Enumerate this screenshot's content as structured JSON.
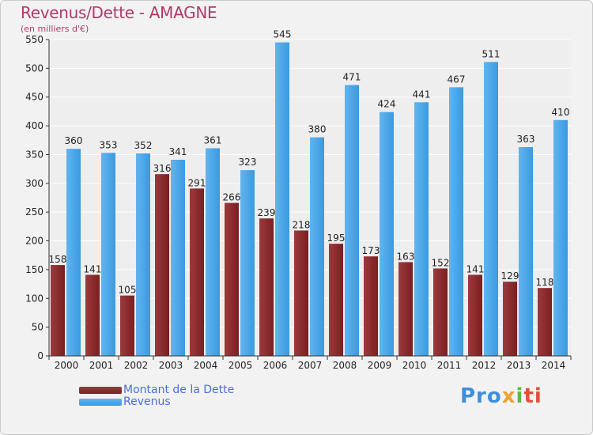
{
  "colors": {
    "debt": "#7a1f22",
    "debt_light": "#9c3a3c",
    "revenue": "#3a9ae0",
    "revenue_light": "#62b4ef",
    "grid": "#ffffff",
    "axis": "#333333",
    "title": "#b03a6a",
    "legend_text": "#4a6fe0"
  },
  "chart_data": {
    "type": "bar",
    "title": "Revenus/Dette - AMAGNE",
    "subtitle": "(en milliers d'€)",
    "categories": [
      "2000",
      "2001",
      "2002",
      "2003",
      "2004",
      "2005",
      "2006",
      "2007",
      "2008",
      "2009",
      "2010",
      "2011",
      "2012",
      "2013",
      "2014"
    ],
    "series": [
      {
        "name": "Montant de la Dette",
        "values": [
          158,
          141,
          105,
          316,
          291,
          266,
          239,
          218,
          195,
          173,
          163,
          152,
          141,
          129,
          118
        ]
      },
      {
        "name": "Revenus",
        "values": [
          360,
          353,
          352,
          341,
          361,
          323,
          545,
          380,
          471,
          424,
          441,
          467,
          511,
          363,
          410
        ]
      }
    ],
    "ylim": [
      0,
      550
    ],
    "yticks": [
      0,
      50,
      100,
      150,
      200,
      250,
      300,
      350,
      400,
      450,
      500,
      550
    ],
    "grid": true,
    "legend": "bottom-left"
  },
  "logo": {
    "part1": "Pro",
    "part2": "x",
    "part3": "i",
    "part4": "ti"
  }
}
